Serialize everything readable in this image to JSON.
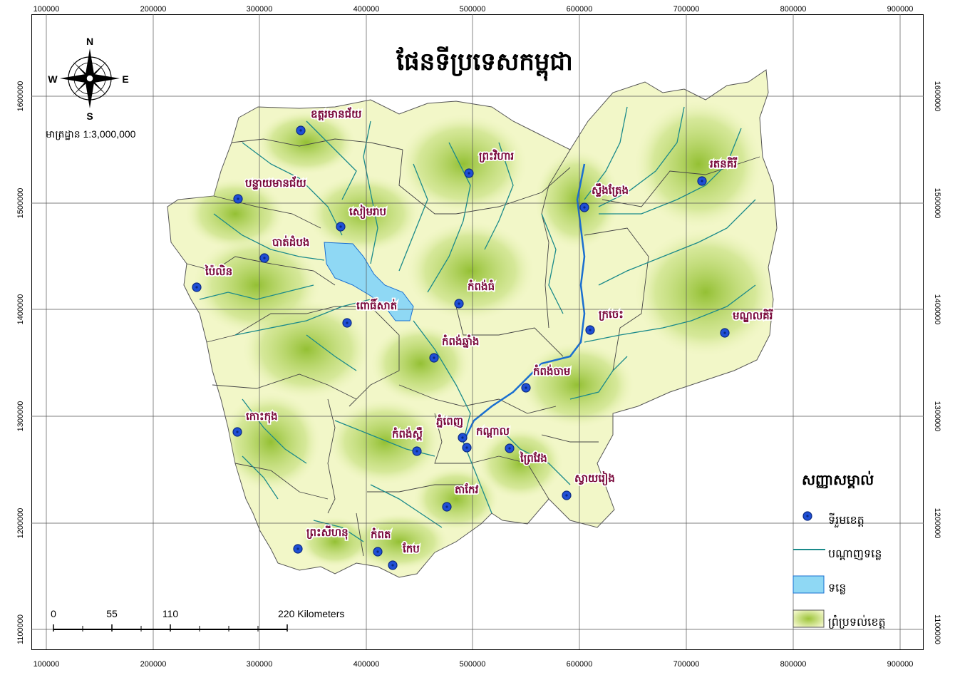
{
  "map": {
    "title": "ផែនទីប្រទេសកម្ពុជា",
    "scale_label": "មាត្រដ្ឋាន 1:3,000,000",
    "compass": {
      "north": "N",
      "south": "S",
      "east": "E",
      "west": "W"
    },
    "x_ticks": [
      "100000",
      "200000",
      "300000",
      "400000",
      "500000",
      "600000",
      "700000",
      "800000",
      "900000"
    ],
    "y_ticks": [
      "1600000",
      "1500000",
      "1400000",
      "1300000",
      "1200000",
      "1100000"
    ],
    "scale_bar": {
      "labels": [
        "0",
        "55",
        "110",
        "220 Kilometers"
      ]
    },
    "colors": {
      "land": "#9dc43a",
      "land_light": "#f2f7c8",
      "water": "#8fd8f4",
      "river": "#1a8a8a",
      "city": "#1f4fd6",
      "label": "#7a0a3c"
    },
    "provinces": [
      {
        "name": "ឧត្តរមានជ័យ"
      },
      {
        "name": "ព្រះវិហារ"
      },
      {
        "name": "រតនគិរី"
      },
      {
        "name": "បន្ទាយមានជ័យ"
      },
      {
        "name": "ស្ទឹងត្រែង"
      },
      {
        "name": "សៀមរាប"
      },
      {
        "name": "បាត់ដំបង"
      },
      {
        "name": "ប៉ៃលិន"
      },
      {
        "name": "កំពង់ធំ"
      },
      {
        "name": "ពោធិ៍សាត់"
      },
      {
        "name": "ក្រចេះ"
      },
      {
        "name": "មណ្ឌលគិរី"
      },
      {
        "name": "កំពង់ឆ្នាំង"
      },
      {
        "name": "កំពង់ចាម"
      },
      {
        "name": "កោះកុង"
      },
      {
        "name": "ភ្នំពេញ"
      },
      {
        "name": "កំពង់ស្ពឺ"
      },
      {
        "name": "កណ្ដាល"
      },
      {
        "name": "ព្រៃវែង"
      },
      {
        "name": "ស្វាយរៀង"
      },
      {
        "name": "តាកែវ"
      },
      {
        "name": "ព្រះសីហនុ"
      },
      {
        "name": "កំពត"
      },
      {
        "name": "កែប"
      }
    ],
    "legend": {
      "title": "សញ្ញាសម្គាល់",
      "items": [
        {
          "label": "ទីរួមខេត្ត",
          "icon": "city-dot-icon"
        },
        {
          "label": "បណ្ដាញទន្លេ",
          "icon": "river-line-icon"
        },
        {
          "label": "ទន្លេ",
          "icon": "lake-patch-icon"
        },
        {
          "label": "ព្រំប្រទល់ខេត្ត",
          "icon": "province-patch-icon"
        }
      ]
    }
  }
}
